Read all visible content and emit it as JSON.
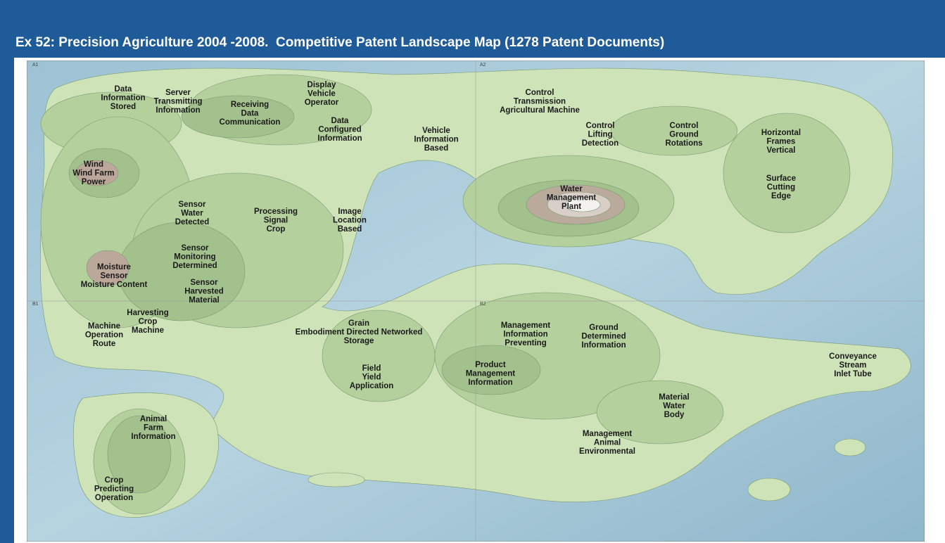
{
  "header": {
    "title": "Ex 52: Precision Agriculture 2004 -2008.  Competitive Patent Landscape Map (1278 Patent Documents)"
  },
  "map": {
    "quadrants": [
      "A1",
      "A2",
      "B1",
      "B2"
    ],
    "labels": [
      {
        "lines": [
          "Data",
          "Information",
          "Stored"
        ]
      },
      {
        "lines": [
          "Server",
          "Transmitting",
          "Information"
        ]
      },
      {
        "lines": [
          "Receiving",
          "Data",
          "Communication"
        ]
      },
      {
        "lines": [
          "Display",
          "Vehicle",
          "Operator"
        ]
      },
      {
        "lines": [
          "Data",
          "Configured",
          "Information"
        ]
      },
      {
        "lines": [
          "Control",
          "Transmission",
          "Agricultural Machine"
        ]
      },
      {
        "lines": [
          "Vehicle",
          "Information",
          "Based"
        ]
      },
      {
        "lines": [
          "Control",
          "Lifting",
          "Detection"
        ]
      },
      {
        "lines": [
          "Control",
          "Ground",
          "Rotations"
        ]
      },
      {
        "lines": [
          "Horizontal",
          "Frames",
          "Vertical"
        ]
      },
      {
        "lines": [
          "Surface",
          "Cutting",
          "Edge"
        ]
      },
      {
        "lines": [
          "Wind",
          "Wind Farm",
          "Power"
        ]
      },
      {
        "lines": [
          "Water",
          "Management",
          "Plant"
        ]
      },
      {
        "lines": [
          "Sensor",
          "Water",
          "Detected"
        ]
      },
      {
        "lines": [
          "Processing",
          "Signal",
          "Crop"
        ]
      },
      {
        "lines": [
          "Image",
          "Location",
          "Based"
        ]
      },
      {
        "lines": [
          "Sensor",
          "Monitoring",
          "Determined"
        ]
      },
      {
        "lines": [
          "Moisture",
          "Sensor",
          "Moisture Content"
        ]
      },
      {
        "lines": [
          "Sensor",
          "Harvested",
          "Material"
        ]
      },
      {
        "lines": [
          "Harvesting",
          "Crop",
          "Machine"
        ]
      },
      {
        "lines": [
          "Machine",
          "Operation",
          "Route"
        ]
      },
      {
        "lines": [
          "Grain",
          "Embodiment Directed Networked",
          "Storage"
        ]
      },
      {
        "lines": [
          "Management",
          "Information",
          "Preventing"
        ]
      },
      {
        "lines": [
          "Ground",
          "Determined",
          "Information"
        ]
      },
      {
        "lines": [
          "Conveyance",
          "Stream",
          "Inlet Tube"
        ]
      },
      {
        "lines": [
          "Field",
          "Yield",
          "Application"
        ]
      },
      {
        "lines": [
          "Product",
          "Management",
          "Information"
        ]
      },
      {
        "lines": [
          "Material",
          "Water",
          "Body"
        ]
      },
      {
        "lines": [
          "Animal",
          "Farm",
          "Information"
        ]
      },
      {
        "lines": [
          "Management",
          "Animal",
          "Environmental"
        ]
      },
      {
        "lines": [
          "Crop",
          "Predicting",
          "Operation"
        ]
      }
    ]
  }
}
